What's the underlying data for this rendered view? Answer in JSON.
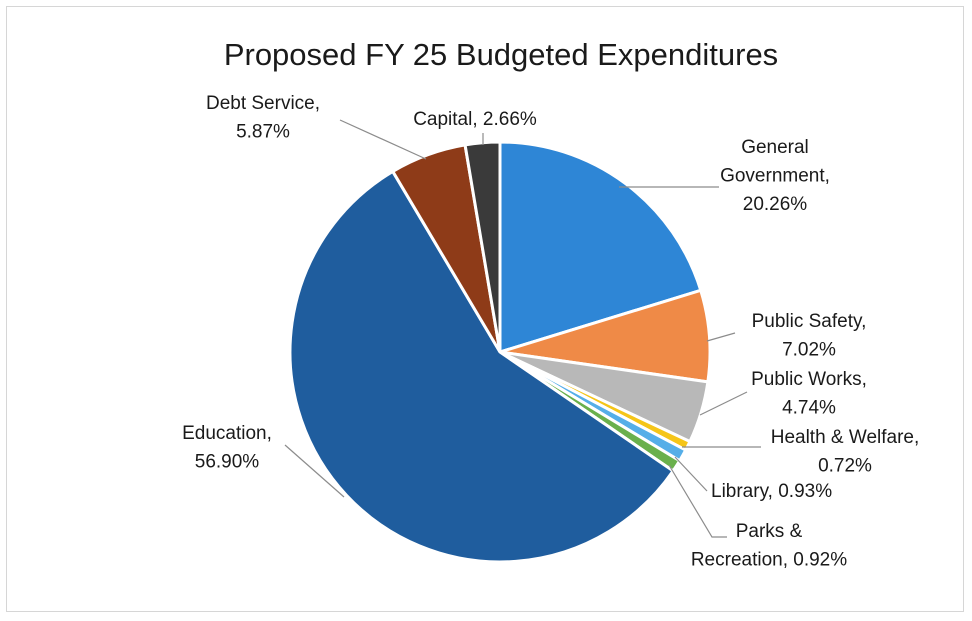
{
  "chart_data": {
    "type": "pie",
    "title": "Proposed FY 25 Budgeted Expenditures",
    "start_angle_deg": 0,
    "direction": "clockwise",
    "slices": [
      {
        "label_lines": [
          "General",
          "Government,",
          "20.26%"
        ],
        "category": "General Government",
        "value": 20.26,
        "color": "#2e86d6"
      },
      {
        "label_lines": [
          "Public Safety,",
          "7.02%"
        ],
        "category": "Public Safety",
        "value": 7.02,
        "color": "#ef8a47"
      },
      {
        "label_lines": [
          "Public Works,",
          "4.74%"
        ],
        "category": "Public Works",
        "value": 4.74,
        "color": "#b8b8b8"
      },
      {
        "label_lines": [
          "Health & Welfare,",
          "0.72%"
        ],
        "category": "Health & Welfare",
        "value": 0.72,
        "color": "#f5c518"
      },
      {
        "label_lines": [
          "Library, 0.93%"
        ],
        "category": "Library",
        "value": 0.93,
        "color": "#55aee8"
      },
      {
        "label_lines": [
          "Parks &",
          "Recreation, 0.92%"
        ],
        "category": "Parks & Recreation",
        "value": 0.92,
        "color": "#6ab04c"
      },
      {
        "label_lines": [
          "Education,",
          "56.90%"
        ],
        "category": "Education",
        "value": 56.9,
        "color": "#1f5d9e"
      },
      {
        "label_lines": [
          "Debt Service,",
          "5.87%"
        ],
        "category": "Debt Service",
        "value": 5.87,
        "color": "#8e3b18"
      },
      {
        "label_lines": [
          "Capital, 2.66%"
        ],
        "category": "Capital",
        "value": 2.66,
        "color": "#3a3a3a"
      }
    ]
  }
}
